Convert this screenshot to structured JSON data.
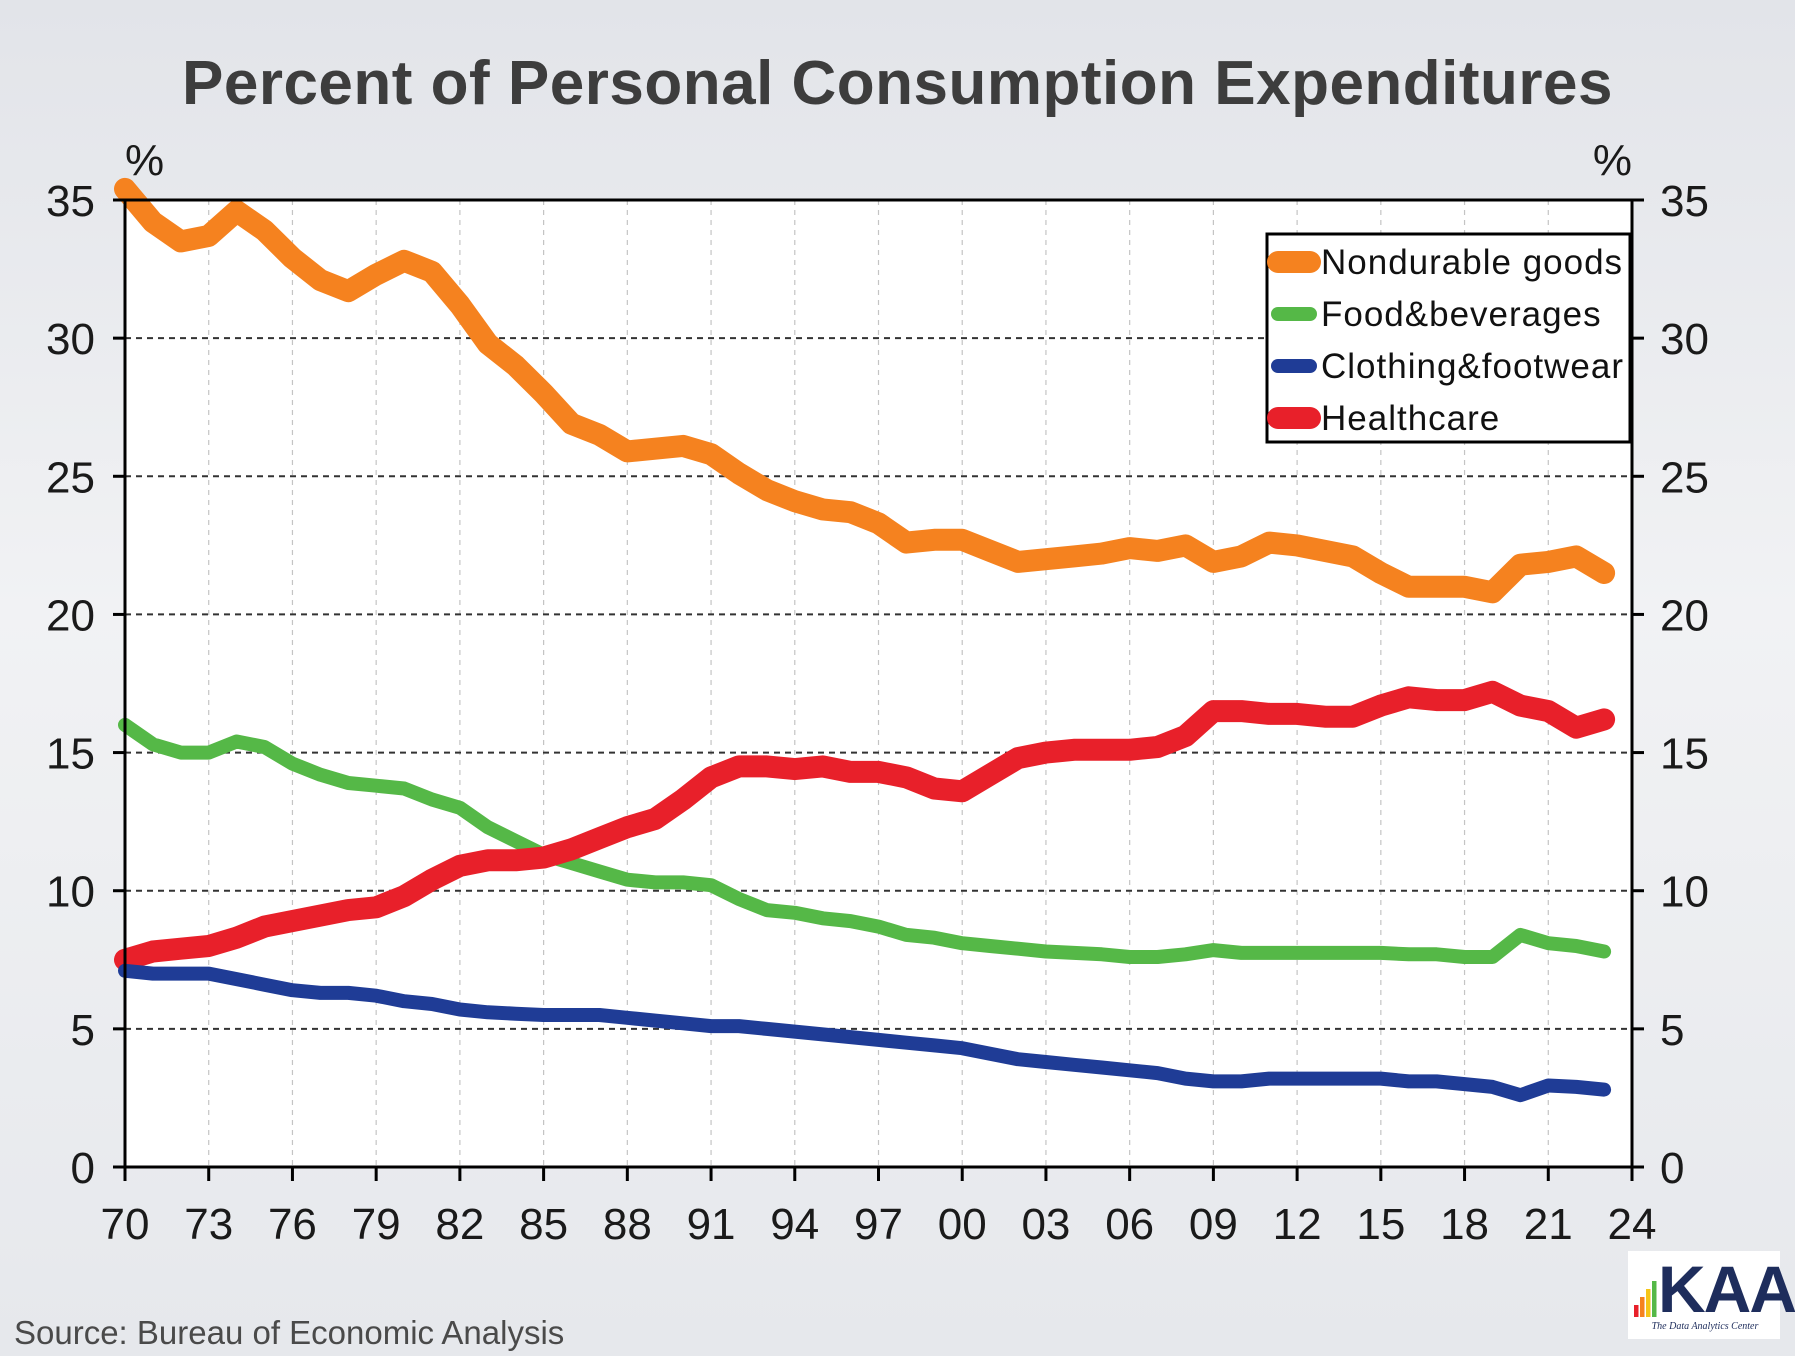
{
  "chart_data": {
    "type": "line",
    "title": "Percent of Personal Consumption Expenditures",
    "y_unit_left": "%",
    "y_unit_right": "%",
    "ylim": [
      0,
      35
    ],
    "yticks": [
      0,
      5,
      10,
      15,
      20,
      25,
      30,
      35
    ],
    "y_tick_labels": [
      "0",
      "5",
      "10",
      "15",
      "20",
      "25",
      "30",
      "35"
    ],
    "xlim": [
      1970,
      2024
    ],
    "xticks": [
      1970,
      1973,
      1976,
      1979,
      1982,
      1985,
      1988,
      1991,
      1994,
      1997,
      2000,
      2003,
      2006,
      2009,
      2012,
      2015,
      2018,
      2021,
      2024
    ],
    "x_tick_labels": [
      "70",
      "73",
      "76",
      "79",
      "82",
      "85",
      "88",
      "91",
      "94",
      "97",
      "00",
      "03",
      "06",
      "09",
      "12",
      "15",
      "18",
      "21",
      "24"
    ],
    "grid": true,
    "legend_position": "top-right",
    "x": [
      1970,
      1971,
      1972,
      1973,
      1974,
      1975,
      1976,
      1977,
      1978,
      1979,
      1980,
      1981,
      1982,
      1983,
      1984,
      1985,
      1986,
      1987,
      1988,
      1989,
      1990,
      1991,
      1992,
      1993,
      1994,
      1995,
      1996,
      1997,
      1998,
      1999,
      2000,
      2001,
      2002,
      2003,
      2004,
      2005,
      2006,
      2007,
      2008,
      2009,
      2010,
      2011,
      2012,
      2013,
      2014,
      2015,
      2016,
      2017,
      2018,
      2019,
      2020,
      2021,
      2022,
      2023
    ],
    "series": [
      {
        "name": "Nondurable goods",
        "color": "#f5821f",
        "values": [
          35.4,
          34.2,
          33.5,
          33.7,
          34.6,
          33.9,
          32.9,
          32.1,
          31.7,
          32.3,
          32.8,
          32.4,
          31.2,
          29.8,
          29.0,
          28.0,
          26.9,
          26.5,
          25.9,
          26.0,
          26.1,
          25.8,
          25.1,
          24.5,
          24.1,
          23.8,
          23.7,
          23.3,
          22.6,
          22.7,
          22.7,
          22.3,
          21.9,
          22.0,
          22.1,
          22.2,
          22.4,
          22.3,
          22.5,
          21.9,
          22.1,
          22.6,
          22.5,
          22.3,
          22.1,
          21.5,
          21.0,
          21.0,
          21.0,
          20.8,
          21.8,
          21.9,
          22.1,
          21.5
        ]
      },
      {
        "name": "Food&beverages",
        "color": "#55b847",
        "values": [
          16.0,
          15.3,
          15.0,
          15.0,
          15.4,
          15.2,
          14.6,
          14.2,
          13.9,
          13.8,
          13.7,
          13.3,
          13.0,
          12.3,
          11.8,
          11.3,
          11.0,
          10.7,
          10.4,
          10.3,
          10.3,
          10.2,
          9.7,
          9.3,
          9.2,
          9.0,
          8.9,
          8.7,
          8.4,
          8.3,
          8.1,
          8.0,
          7.9,
          7.8,
          7.75,
          7.7,
          7.6,
          7.6,
          7.7,
          7.85,
          7.75,
          7.75,
          7.75,
          7.75,
          7.75,
          7.75,
          7.7,
          7.7,
          7.6,
          7.6,
          8.4,
          8.1,
          8.0,
          7.8
        ]
      },
      {
        "name": "Clothing&footwear",
        "color": "#1f3c96",
        "values": [
          7.1,
          7.0,
          7.0,
          7.0,
          6.8,
          6.6,
          6.4,
          6.3,
          6.3,
          6.2,
          6.0,
          5.9,
          5.7,
          5.6,
          5.55,
          5.5,
          5.5,
          5.5,
          5.4,
          5.3,
          5.2,
          5.1,
          5.1,
          5.0,
          4.9,
          4.8,
          4.7,
          4.6,
          4.5,
          4.4,
          4.3,
          4.1,
          3.9,
          3.8,
          3.7,
          3.6,
          3.5,
          3.4,
          3.2,
          3.1,
          3.1,
          3.2,
          3.2,
          3.2,
          3.2,
          3.2,
          3.1,
          3.1,
          3.0,
          2.9,
          2.6,
          2.95,
          2.9,
          2.8
        ]
      },
      {
        "name": "Healthcare",
        "color": "#e8202a",
        "values": [
          7.5,
          7.8,
          7.9,
          8.0,
          8.3,
          8.7,
          8.9,
          9.1,
          9.3,
          9.4,
          9.8,
          10.4,
          10.9,
          11.1,
          11.1,
          11.2,
          11.5,
          11.9,
          12.3,
          12.6,
          13.3,
          14.1,
          14.5,
          14.5,
          14.4,
          14.5,
          14.3,
          14.3,
          14.1,
          13.7,
          13.6,
          14.2,
          14.8,
          15.0,
          15.1,
          15.1,
          15.1,
          15.2,
          15.6,
          16.5,
          16.5,
          16.4,
          16.4,
          16.3,
          16.3,
          16.7,
          17.0,
          16.9,
          16.9,
          17.2,
          16.7,
          16.5,
          15.9,
          16.2
        ]
      }
    ]
  },
  "source_text": "Source: Bureau of Economic Analysis",
  "logo": {
    "text": "KAA",
    "tagline": "The Data Analytics Center",
    "bar_colors": [
      "#e8202a",
      "#f5821f",
      "#f5c518",
      "#55b847"
    ]
  }
}
